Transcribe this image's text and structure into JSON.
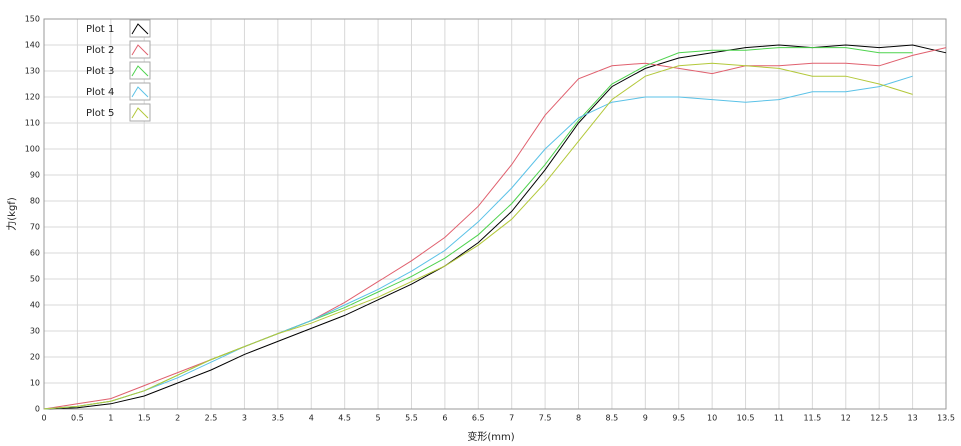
{
  "chart_data": {
    "type": "line",
    "xlabel": "变形(mm)",
    "ylabel": "力(kgf)",
    "x": [
      0,
      0.5,
      1,
      1.5,
      2,
      2.5,
      3,
      3.5,
      4,
      4.5,
      5,
      5.5,
      6,
      6.5,
      7,
      7.5,
      8,
      8.5,
      9,
      9.5,
      10,
      10.5,
      11,
      11.5,
      12,
      12.5,
      13,
      13.5
    ],
    "series": [
      {
        "name": "Plot 1",
        "color": "#000000",
        "values": [
          0,
          0.5,
          2,
          5,
          10,
          15,
          21,
          26,
          31,
          36,
          42,
          48,
          55,
          64,
          76,
          92,
          110,
          124,
          131,
          135,
          137,
          139,
          140,
          139,
          140,
          139,
          140,
          137
        ]
      },
      {
        "name": "Plot 2",
        "color": "#e0606e",
        "values": [
          0,
          2,
          4,
          9,
          14,
          19,
          24,
          29,
          34,
          41,
          49,
          57,
          66,
          78,
          94,
          113,
          127,
          132,
          133,
          131,
          129,
          132,
          132,
          133,
          133,
          132,
          136,
          139
        ]
      },
      {
        "name": "Plot 3",
        "color": "#4fd34f",
        "values": [
          0,
          1,
          3,
          7,
          13,
          19,
          24,
          29,
          34,
          39,
          45,
          51,
          58,
          67,
          79,
          94,
          111,
          125,
          132,
          137,
          138,
          138,
          139,
          139,
          139,
          137,
          137,
          null
        ]
      },
      {
        "name": "Plot 4",
        "color": "#5bc2e7",
        "values": [
          0,
          1,
          3,
          7,
          12,
          18,
          24,
          29,
          34,
          40,
          46,
          53,
          61,
          72,
          85,
          100,
          112,
          118,
          120,
          120,
          119,
          118,
          119,
          122,
          122,
          124,
          128,
          null
        ]
      },
      {
        "name": "Plot 5",
        "color": "#b3c83a",
        "values": [
          0,
          1,
          3,
          7,
          13,
          19,
          24,
          29,
          33,
          38,
          43,
          49,
          55,
          63,
          73,
          87,
          103,
          119,
          128,
          132,
          133,
          132,
          131,
          128,
          128,
          125,
          121,
          null
        ]
      }
    ],
    "xlim": [
      0,
      13.5
    ],
    "ylim": [
      0,
      150
    ],
    "xticks": [
      0,
      0.5,
      1,
      1.5,
      2,
      2.5,
      3,
      3.5,
      4,
      4.5,
      5,
      5.5,
      6,
      6.5,
      7,
      7.5,
      8,
      8.5,
      9,
      9.5,
      10,
      10.5,
      11,
      11.5,
      12,
      12.5,
      13,
      13.5
    ],
    "yticks": [
      0,
      10,
      20,
      30,
      40,
      50,
      60,
      70,
      80,
      90,
      100,
      110,
      120,
      130,
      140,
      150
    ],
    "grid": true
  }
}
